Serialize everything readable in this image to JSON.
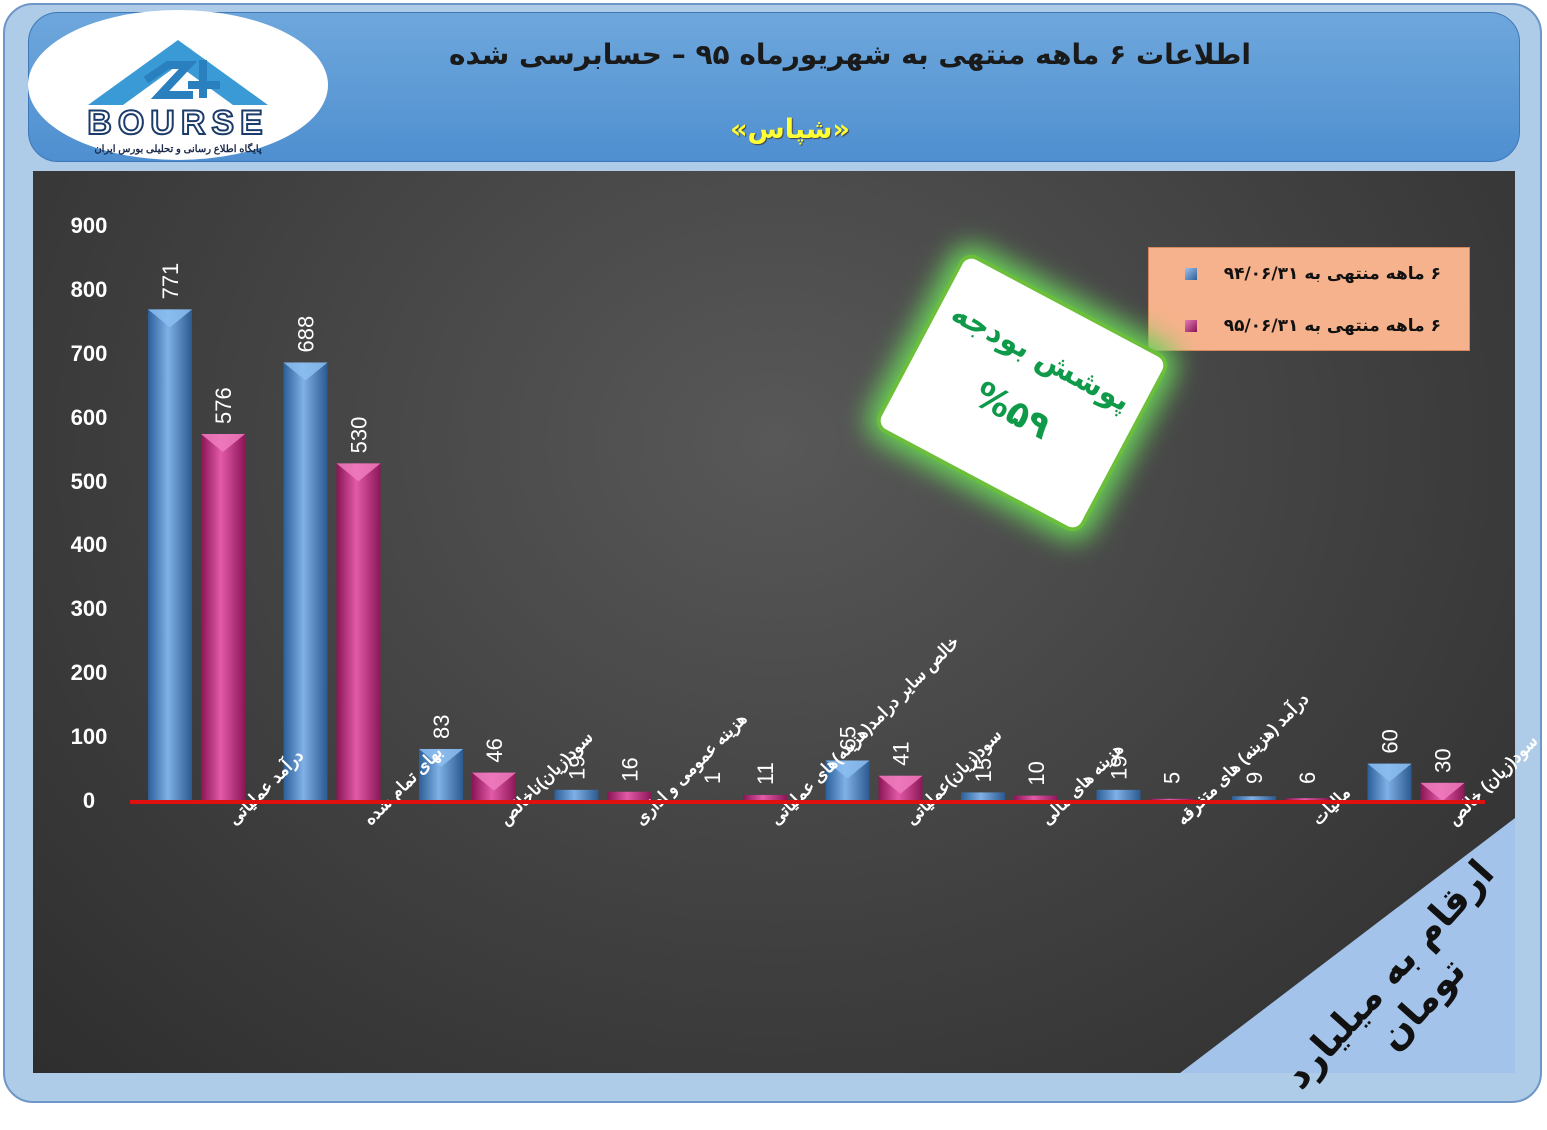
{
  "header": {
    "title": "اطلاعات ۶  ماهه منتهی به شهریورماه ۹۵ – حسابرسی شده",
    "subtitle": "«شپاس»"
  },
  "logo": {
    "text": "BOURSE",
    "tagline": "پایگاه اطلاع رسانی و تحلیلی بورس ایران"
  },
  "colors": {
    "series1": "#4a86c8",
    "series2": "#c0267a",
    "zero_line": "#e01010",
    "badge_text": "#0f9a4a"
  },
  "legend": {
    "items": [
      {
        "label": "۶ ماهه منتهی به ۹۴/۰۶/۳۱",
        "color": "#4a86c8"
      },
      {
        "label": "۶ ماهه منتهی به ۹۵/۰۶/۳۱",
        "color": "#c0267a"
      }
    ]
  },
  "badge": {
    "line1": "پوشش بودجه",
    "line2": "%۵۹"
  },
  "unit_note": "ارقام به میلیارد تومان",
  "chart_data": {
    "type": "bar",
    "categories": [
      "درآمد عملیاتی",
      "بهای تمام شده",
      "سود(زیان)ناخالص",
      "هزینه عمومی و اداری",
      "خالص سایر درامد(هزینه)های عملیاتی",
      "سود(زیان)عملیاتی",
      "هزینه های مالی",
      "درآمد (هزینه) های متفرقه",
      "مالیات",
      "سود(زیان) خالص"
    ],
    "series": [
      {
        "name": "۶ ماهه منتهی به ۹۴/۰۶/۳۱",
        "values": [
          771,
          688,
          83,
          19,
          1,
          65,
          15,
          19,
          9,
          60
        ]
      },
      {
        "name": "۶ ماهه منتهی به ۹۵/۰۶/۳۱",
        "values": [
          576,
          530,
          46,
          16,
          11,
          41,
          10,
          5,
          6,
          30
        ]
      }
    ],
    "data_labels": [
      [
        "771",
        "688",
        "83",
        "19",
        "1",
        "65",
        "15",
        "19",
        "9",
        "60"
      ],
      [
        "576",
        "530",
        "46",
        "16",
        "11",
        "41",
        "10",
        "5",
        "6",
        "30"
      ]
    ],
    "yticks": [
      "0",
      "100",
      "200",
      "300",
      "400",
      "500",
      "600",
      "700",
      "800",
      "900"
    ],
    "ylim": [
      0,
      900
    ],
    "grid": false,
    "legend_position": "top-right"
  }
}
